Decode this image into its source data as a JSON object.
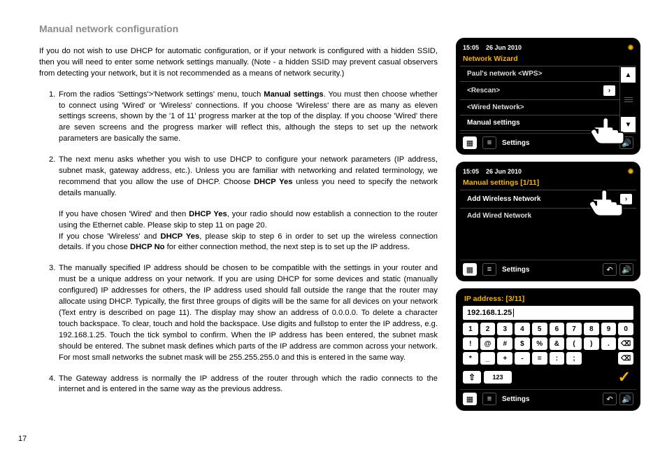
{
  "title": "Manual network configuration",
  "page_number": "17",
  "intro": "If you do not wish to use DHCP for automatic configuration, or if your network is configured with a hidden SSID, then you will need to enter some network settings manually. (Note - a hidden SSID may prevent casual observers from detecting your network, but it is not recommended as a means of network security.)",
  "step1_a": "From the radios 'Settings'>'Network settings' menu, touch ",
  "step1_b": "Manual settings",
  "step1_c": ". You must then choose whether to connect using 'Wired' or 'Wireless' connections. If you choose 'Wireless' there are as many as eleven settings screens, shown by the '1 of 11' progress marker at the top of the display. If you choose 'Wired' there are seven screens and the progress marker will reflect this, although the steps to set up the network parameters are basically the same.",
  "step2_a": "The next menu asks whether you wish to use DHCP to configure your network parameters (IP address, subnet mask, gateway address, etc.). Unless you are familiar with networking and related terminology, we recommend that you allow the use of DHCP. Choose ",
  "step2_b": "DHCP Yes",
  "step2_c": " unless you need to specify the network details manually.",
  "step2_d": "If you have chosen 'Wired' and then ",
  "step2_e": "DHCP Yes",
  "step2_f": ", your radio should now establish a connection to the router using the Ethernet cable. Please skip to step 11 on page 20.",
  "step2_g": "If you chose 'Wireless' and ",
  "step2_h": "DHCP Yes",
  "step2_i": ", please skip to step 6 in order to set up the wireless connection details. If you chose ",
  "step2_j": "DHCP No",
  "step2_k": " for either connection method, the next step is to set up the IP address.",
  "step3": "The manually specified IP address should be chosen to be compatible with the settings in your router and must be a unique address on your network. If you are using DHCP for some devices and static (manually configured) IP addresses for others, the IP address used should fall outside the range that the router may allocate using DHCP. Typically, the first three groups of digits will be the same for all devices on your network (Text entry is described on page 11). The display may show an address of 0.0.0.0. To delete a character touch backspace. To clear, touch and hold the backspace. Use digits and fullstop to enter the IP address, e.g. 192.168.1.25. Touch the tick symbol to confirm. When the IP address has been entered, the subnet mask should be entered. The subnet mask defines which parts of the IP address are common across your network. For most small networks the subnet mask will be 255.255.255.0 and this is entered in the same way.",
  "step4": "The Gateway address is normally the IP address of the router through which the radio connects to the internet and is entered in the same way as the previous address.",
  "screen1": {
    "time": "15:05",
    "date": "26 Jun 2010",
    "header": "Network Wizard",
    "items": [
      "Paul's network <WPS>",
      "<Rescan>",
      "<Wired Network>",
      "Manual settings"
    ],
    "settings": "Settings"
  },
  "screen2": {
    "time": "15:05",
    "date": "26 Jun 2010",
    "header": "Manual settings [1/11]",
    "items": [
      "Add Wireless Network",
      "Add Wired Network"
    ],
    "settings": "Settings"
  },
  "screen3": {
    "header": "IP address: [3/11]",
    "input": "192.168.1.25",
    "row1": [
      "1",
      "2",
      "3",
      "4",
      "5",
      "6",
      "7",
      "8",
      "9",
      "0"
    ],
    "row2": [
      "!",
      "@",
      "#",
      "$",
      "%",
      "&",
      "(",
      ")",
      ".",
      "⌫"
    ],
    "row3": [
      "*",
      "_",
      "+",
      "-",
      "=",
      ":",
      ";"
    ],
    "mode": "123",
    "settings": "Settings"
  },
  "colors": {
    "accent": "#f7b500",
    "screen_bg": "#000000",
    "title_gray": "#8a8a8a"
  }
}
